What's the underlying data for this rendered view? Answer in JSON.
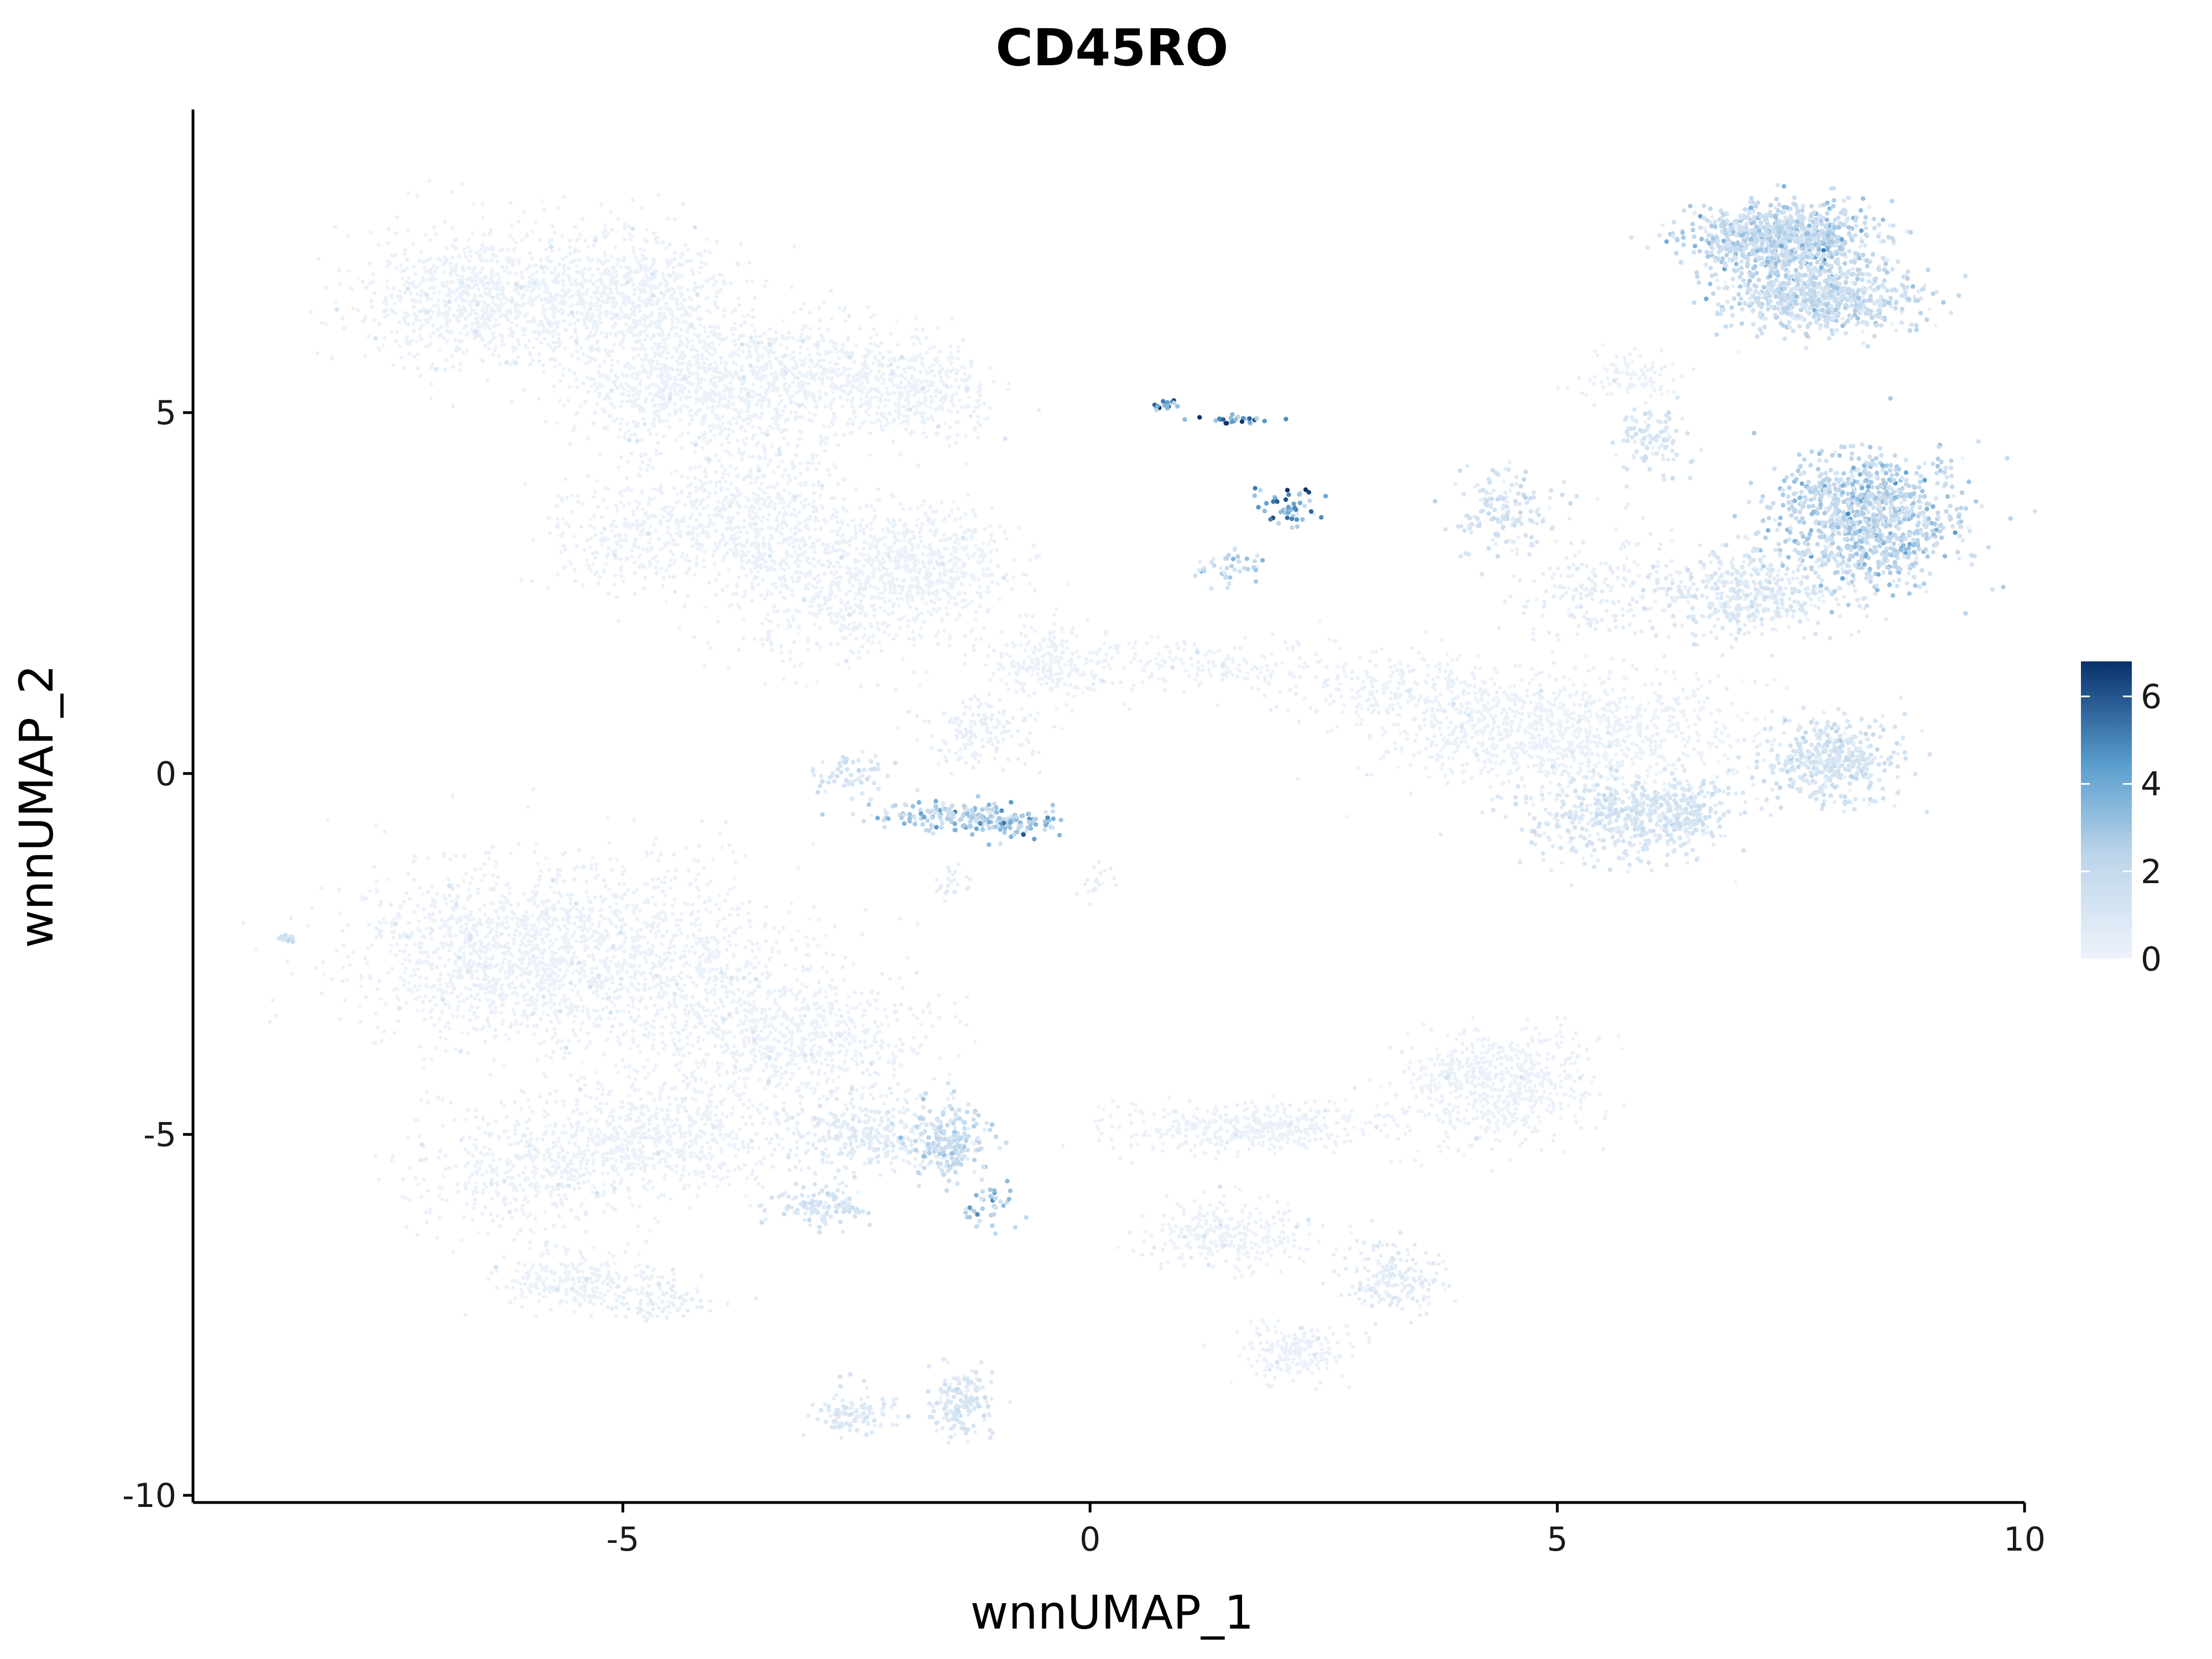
{
  "chart_data": {
    "type": "scatter",
    "title": "CD45RO",
    "xlabel": "wnnUMAP_1",
    "ylabel": "wnnUMAP_2",
    "xlim": [
      -9.6,
      10
    ],
    "ylim": [
      -10.1,
      9.2
    ],
    "x_ticks": [
      {
        "value": -5,
        "label": "-5"
      },
      {
        "value": 0,
        "label": "0"
      },
      {
        "value": 5,
        "label": "5"
      },
      {
        "value": 10,
        "label": "10"
      }
    ],
    "y_ticks": [
      {
        "value": -10,
        "label": "-10"
      },
      {
        "value": -5,
        "label": "-5"
      },
      {
        "value": 0,
        "label": "0"
      },
      {
        "value": 5,
        "label": "5"
      }
    ],
    "legend": {
      "position": "right",
      "min": 0,
      "max": 6.8,
      "ticks": [
        {
          "value": 0,
          "label": "0"
        },
        {
          "value": 2,
          "label": "2"
        },
        {
          "value": 4,
          "label": "4"
        },
        {
          "value": 6,
          "label": "6"
        }
      ],
      "color_low": "#eef3fb",
      "color_high": "#08306b"
    },
    "grid": false,
    "regions": [
      {
        "x": -6.5,
        "y": 6.6,
        "rx": 1.3,
        "ry": 1.0,
        "n": 900,
        "mean": 0.05
      },
      {
        "x": -4.9,
        "y": 6.6,
        "rx": 1.1,
        "ry": 1.0,
        "n": 700,
        "mean": 0.05
      },
      {
        "x": -4.3,
        "y": 5.4,
        "rx": 1.3,
        "ry": 0.9,
        "n": 800,
        "mean": 0.05
      },
      {
        "x": -3.0,
        "y": 5.5,
        "rx": 1.1,
        "ry": 0.8,
        "n": 500,
        "mean": 0.05
      },
      {
        "x": -1.8,
        "y": 5.3,
        "rx": 0.8,
        "ry": 0.7,
        "n": 350,
        "mean": 0.05
      },
      {
        "x": -4.9,
        "y": 3.3,
        "rx": 0.9,
        "ry": 0.8,
        "n": 300,
        "mean": 0.05
      },
      {
        "x": -3.6,
        "y": 3.6,
        "rx": 1.1,
        "ry": 1.0,
        "n": 550,
        "mean": 0.05
      },
      {
        "x": -2.6,
        "y": 2.6,
        "rx": 1.3,
        "ry": 1.1,
        "n": 700,
        "mean": 0.06
      },
      {
        "x": -1.7,
        "y": 2.9,
        "rx": 0.9,
        "ry": 0.8,
        "n": 400,
        "mean": 0.06
      },
      {
        "x": -0.5,
        "y": 1.5,
        "rx": 0.6,
        "ry": 0.5,
        "n": 220,
        "mean": 0.05
      },
      {
        "x": -1.2,
        "y": 0.6,
        "rx": 0.7,
        "ry": 0.5,
        "n": 160,
        "mean": 0.3
      },
      {
        "x": -2.6,
        "y": 0.0,
        "rx": 0.4,
        "ry": 0.3,
        "n": 60,
        "mean": 1.0
      },
      {
        "x": -1.5,
        "y": -0.6,
        "rx": 1.0,
        "ry": 0.2,
        "n": 150,
        "mean": 2.2
      },
      {
        "x": -0.9,
        "y": -0.7,
        "rx": 0.6,
        "ry": 0.2,
        "n": 80,
        "mean": 2.6
      },
      {
        "x": -1.5,
        "y": -1.5,
        "rx": 0.2,
        "ry": 0.2,
        "n": 25,
        "mean": 0.4
      },
      {
        "x": 0.1,
        "y": -1.5,
        "rx": 0.2,
        "ry": 0.3,
        "n": 20,
        "mean": 0.4
      },
      {
        "x": 0.8,
        "y": 5.1,
        "rx": 0.15,
        "ry": 0.08,
        "n": 18,
        "mean": 3.6
      },
      {
        "x": 1.6,
        "y": 4.9,
        "rx": 0.4,
        "ry": 0.06,
        "n": 26,
        "mean": 4.4
      },
      {
        "x": 2.1,
        "y": 3.7,
        "rx": 0.35,
        "ry": 0.35,
        "n": 50,
        "mean": 3.8
      },
      {
        "x": 1.5,
        "y": 2.9,
        "rx": 0.4,
        "ry": 0.25,
        "n": 40,
        "mean": 2.0
      },
      {
        "x": 1.2,
        "y": 1.5,
        "rx": 1.8,
        "ry": 0.4,
        "n": 200,
        "mean": 0.1
      },
      {
        "x": 3.2,
        "y": 1.2,
        "rx": 1.3,
        "ry": 0.5,
        "n": 200,
        "mean": 0.2
      },
      {
        "x": 4.4,
        "y": 3.6,
        "rx": 0.6,
        "ry": 0.6,
        "n": 150,
        "mean": 1.1
      },
      {
        "x": 5.4,
        "y": 2.6,
        "rx": 0.9,
        "ry": 0.8,
        "n": 200,
        "mean": 0.4
      },
      {
        "x": 5.8,
        "y": 5.5,
        "rx": 0.5,
        "ry": 0.4,
        "n": 100,
        "mean": 0.1
      },
      {
        "x": 6.0,
        "y": 4.6,
        "rx": 0.4,
        "ry": 0.5,
        "n": 100,
        "mean": 0.9
      },
      {
        "x": 7.4,
        "y": 7.4,
        "rx": 1.0,
        "ry": 0.45,
        "n": 900,
        "mean": 1.9
      },
      {
        "x": 7.8,
        "y": 6.6,
        "rx": 1.0,
        "ry": 0.45,
        "n": 700,
        "mean": 1.6
      },
      {
        "x": 8.3,
        "y": 3.5,
        "rx": 1.0,
        "ry": 0.9,
        "n": 1000,
        "mean": 2.0
      },
      {
        "x": 7.0,
        "y": 2.5,
        "rx": 1.1,
        "ry": 0.6,
        "n": 450,
        "mean": 0.7
      },
      {
        "x": 5.0,
        "y": 0.6,
        "rx": 1.9,
        "ry": 0.8,
        "n": 1100,
        "mean": 0.15
      },
      {
        "x": 5.7,
        "y": -0.6,
        "rx": 1.1,
        "ry": 0.6,
        "n": 500,
        "mean": 0.9
      },
      {
        "x": 7.9,
        "y": 0.2,
        "rx": 0.7,
        "ry": 0.6,
        "n": 400,
        "mean": 1.1
      },
      {
        "x": 6.4,
        "y": -0.5,
        "rx": 0.4,
        "ry": 0.5,
        "n": 120,
        "mean": 1.1
      },
      {
        "x": -6.5,
        "y": -2.5,
        "rx": 1.4,
        "ry": 1.2,
        "n": 900,
        "mean": 0.05
      },
      {
        "x": -4.9,
        "y": -2.6,
        "rx": 1.7,
        "ry": 1.4,
        "n": 1200,
        "mean": 0.06
      },
      {
        "x": -3.1,
        "y": -3.6,
        "rx": 1.3,
        "ry": 1.0,
        "n": 700,
        "mean": 0.1
      },
      {
        "x": -6.0,
        "y": -5.5,
        "rx": 1.2,
        "ry": 0.9,
        "n": 500,
        "mean": 0.05
      },
      {
        "x": -4.5,
        "y": -5.0,
        "rx": 1.3,
        "ry": 0.8,
        "n": 600,
        "mean": 0.1
      },
      {
        "x": -2.4,
        "y": -5.0,
        "rx": 0.9,
        "ry": 0.6,
        "n": 350,
        "mean": 0.5
      },
      {
        "x": -1.5,
        "y": -5.1,
        "rx": 0.4,
        "ry": 0.5,
        "n": 200,
        "mean": 1.6
      },
      {
        "x": -1.1,
        "y": -6.0,
        "rx": 0.3,
        "ry": 0.3,
        "n": 40,
        "mean": 2.5
      },
      {
        "x": -2.9,
        "y": -6.0,
        "rx": 0.6,
        "ry": 0.3,
        "n": 120,
        "mean": 1.0
      },
      {
        "x": -5.5,
        "y": -7.0,
        "rx": 0.9,
        "ry": 0.4,
        "n": 250,
        "mean": 0.1
      },
      {
        "x": -4.6,
        "y": -7.3,
        "rx": 0.6,
        "ry": 0.3,
        "n": 100,
        "mean": 0.4
      },
      {
        "x": 1.7,
        "y": -4.9,
        "rx": 1.6,
        "ry": 0.35,
        "n": 450,
        "mean": 0.05
      },
      {
        "x": 4.4,
        "y": -4.3,
        "rx": 1.0,
        "ry": 0.8,
        "n": 650,
        "mean": 0.05
      },
      {
        "x": 1.5,
        "y": -6.4,
        "rx": 0.9,
        "ry": 0.5,
        "n": 300,
        "mean": 0.1
      },
      {
        "x": 3.2,
        "y": -7.0,
        "rx": 0.5,
        "ry": 0.5,
        "n": 200,
        "mean": 0.5
      },
      {
        "x": 2.2,
        "y": -8.0,
        "rx": 0.6,
        "ry": 0.4,
        "n": 200,
        "mean": 0.1
      },
      {
        "x": -2.5,
        "y": -8.9,
        "rx": 0.4,
        "ry": 0.3,
        "n": 120,
        "mean": 0.7
      },
      {
        "x": -1.4,
        "y": -8.7,
        "rx": 0.4,
        "ry": 0.5,
        "n": 160,
        "mean": 0.9
      },
      {
        "x": -8.6,
        "y": -2.3,
        "rx": 0.1,
        "ry": 0.06,
        "n": 15,
        "mean": 1.3
      }
    ]
  }
}
